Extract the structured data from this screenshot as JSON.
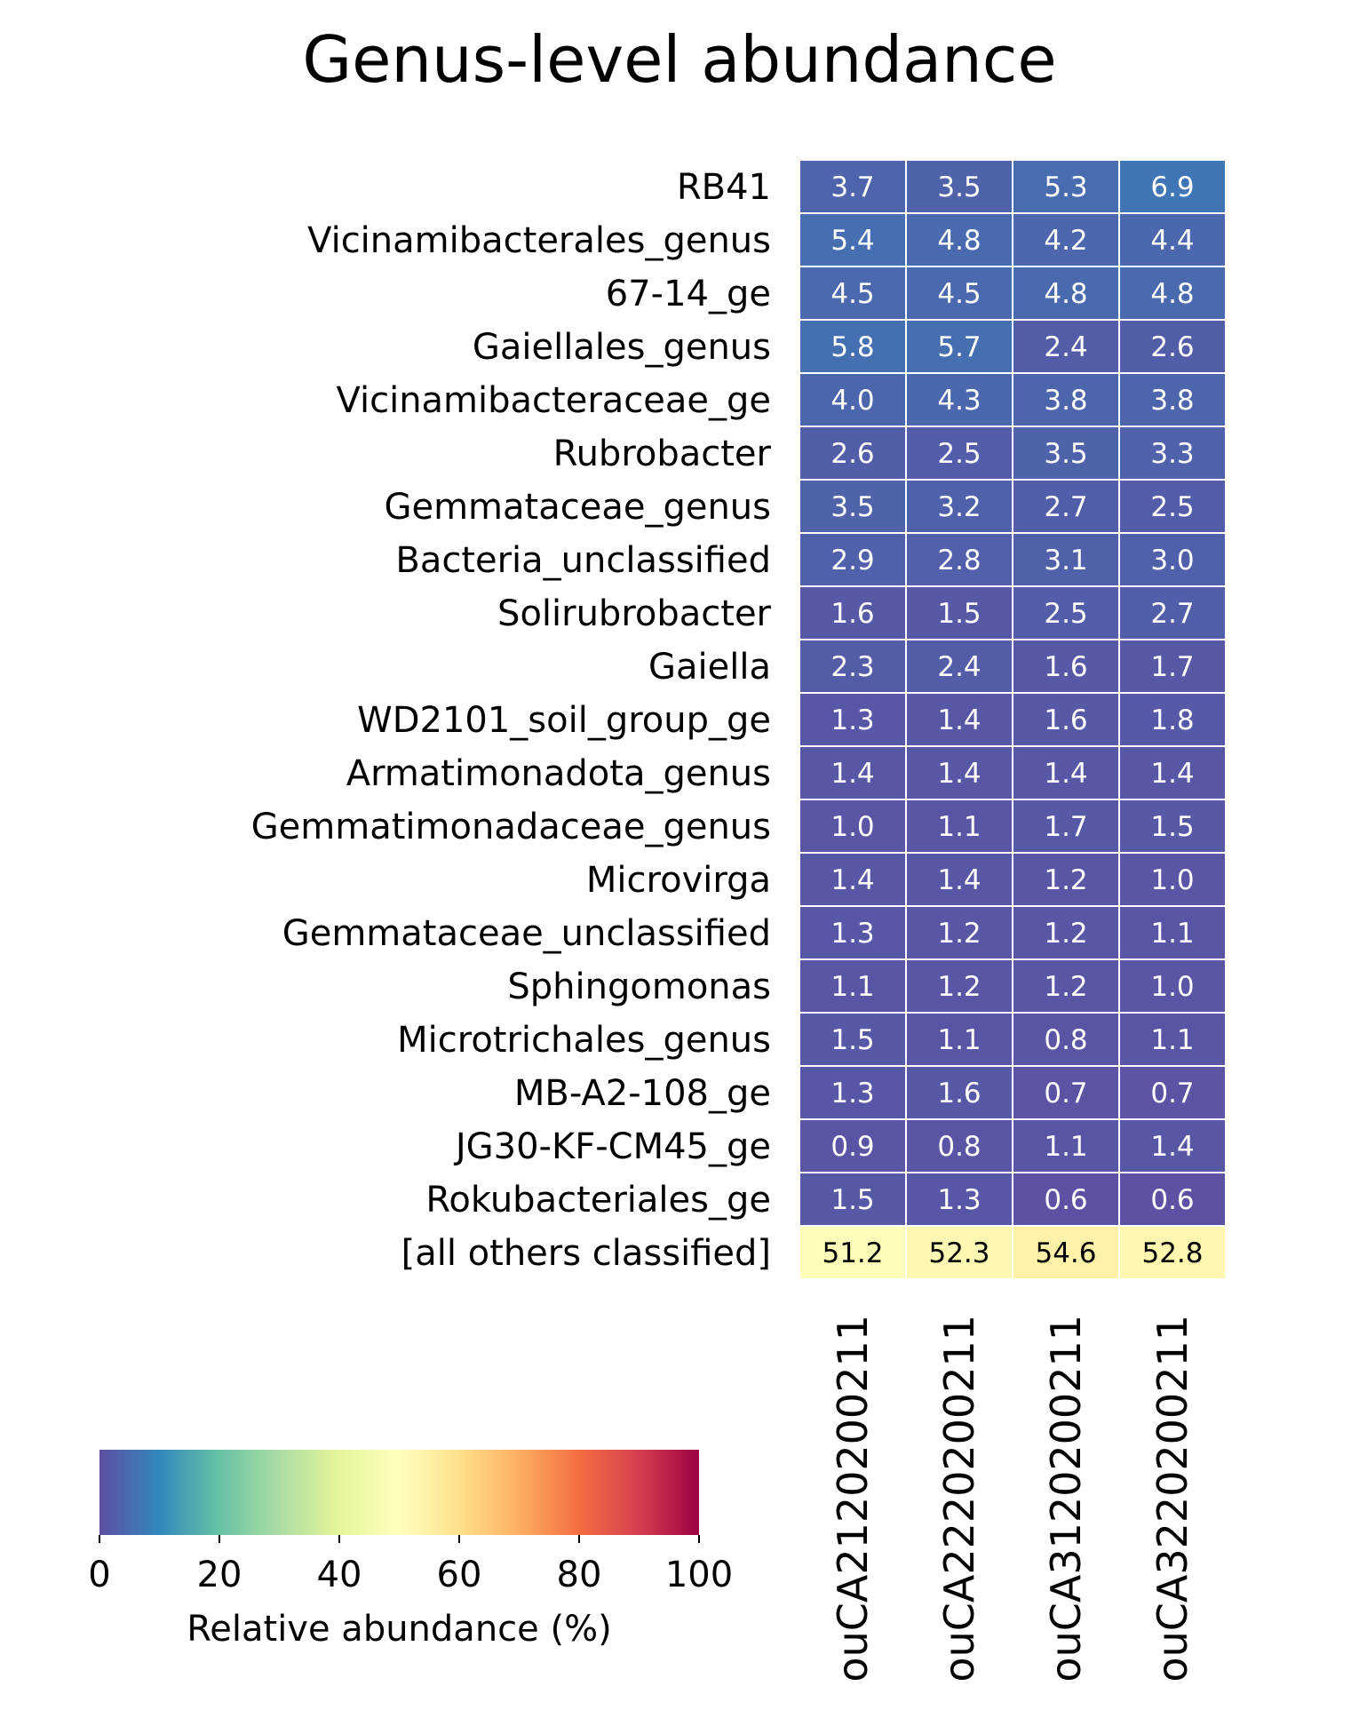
{
  "chart_data": {
    "type": "heatmap",
    "title": "Genus-level abundance",
    "rows": [
      "RB41",
      "Vicinamibacterales_genus",
      "67-14_ge",
      "Gaiellales_genus",
      "Vicinamibacteraceae_ge",
      "Rubrobacter",
      "Gemmataceae_genus",
      "Bacteria_unclassified",
      "Solirubrobacter",
      "Gaiella",
      "WD2101_soil_group_ge",
      "Armatimonadota_genus",
      "Gemmatimonadaceae_genus",
      "Microvirga",
      "Gemmataceae_unclassified",
      "Sphingomonas",
      "Microtrichales_genus",
      "MB-A2-108_ge",
      "JG30-KF-CM45_ge",
      "Rokubacteriales_ge",
      "[all others classified]"
    ],
    "columns": [
      "ouCA2120200211",
      "ouCA2220200211",
      "ouCA3120200211",
      "ouCA3220200211"
    ],
    "values": [
      [
        3.7,
        3.5,
        5.3,
        6.9
      ],
      [
        5.4,
        4.8,
        4.2,
        4.4
      ],
      [
        4.5,
        4.5,
        4.8,
        4.8
      ],
      [
        5.8,
        5.7,
        2.4,
        2.6
      ],
      [
        4.0,
        4.3,
        3.8,
        3.8
      ],
      [
        2.6,
        2.5,
        3.5,
        3.3
      ],
      [
        3.5,
        3.2,
        2.7,
        2.5
      ],
      [
        2.9,
        2.8,
        3.1,
        3.0
      ],
      [
        1.6,
        1.5,
        2.5,
        2.7
      ],
      [
        2.3,
        2.4,
        1.6,
        1.7
      ],
      [
        1.3,
        1.4,
        1.6,
        1.8
      ],
      [
        1.4,
        1.4,
        1.4,
        1.4
      ],
      [
        1.0,
        1.1,
        1.7,
        1.5
      ],
      [
        1.4,
        1.4,
        1.2,
        1.0
      ],
      [
        1.3,
        1.2,
        1.2,
        1.1
      ],
      [
        1.1,
        1.2,
        1.2,
        1.0
      ],
      [
        1.5,
        1.1,
        0.8,
        1.1
      ],
      [
        1.3,
        1.6,
        0.7,
        0.7
      ],
      [
        0.9,
        0.8,
        1.1,
        1.4
      ],
      [
        1.5,
        1.3,
        0.6,
        0.6
      ],
      [
        51.2,
        52.3,
        54.6,
        52.8
      ]
    ],
    "colorbar": {
      "label": "Relative abundance (%)",
      "range": [
        0,
        100
      ],
      "ticks": [
        0,
        20,
        40,
        60,
        80,
        100
      ],
      "colormap": "Spectral_r",
      "colors": [
        "#5e4fa2",
        "#3288bd",
        "#66c2a5",
        "#abdda4",
        "#e6f598",
        "#ffffbf",
        "#fee08b",
        "#fdae61",
        "#f46d43",
        "#d53e4f",
        "#9e0142"
      ]
    }
  }
}
